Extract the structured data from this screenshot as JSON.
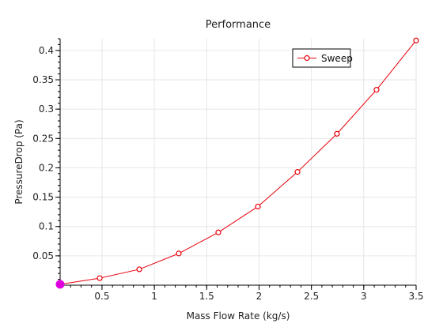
{
  "chart_data": {
    "type": "line",
    "title": "Performance",
    "xlabel": "Mass Flow Rate (kg/s)",
    "ylabel": "PressureDrop (Pa)",
    "xlim": [
      0.1,
      3.5
    ],
    "ylim": [
      0,
      0.42
    ],
    "x_ticks": [
      0.5,
      1,
      1.5,
      2,
      2.5,
      3,
      3.5
    ],
    "x_tick_labels": [
      "0.5",
      "1",
      "1.5",
      "2",
      "2.5",
      "3",
      "3.5"
    ],
    "y_ticks": [
      0.05,
      0.1,
      0.15,
      0.2,
      0.25,
      0.3,
      0.35,
      0.4
    ],
    "y_tick_labels": [
      "0.05",
      "0.1",
      "0.15",
      "0.2",
      "0.25",
      "0.3",
      "0.35",
      "0.4"
    ],
    "grid": true,
    "legend_position": "top-right",
    "series": [
      {
        "name": "Sweep",
        "color": "#e8000b",
        "marker": "open-circle",
        "x": [
          0.1,
          0.478,
          0.856,
          1.233,
          1.611,
          1.989,
          2.367,
          2.744,
          3.122,
          3.5
        ],
        "y": [
          0.0015,
          0.012,
          0.027,
          0.054,
          0.09,
          0.134,
          0.193,
          0.258,
          0.333,
          0.417
        ]
      }
    ],
    "highlight_point": {
      "x": 0.1,
      "y": 0.0015,
      "color": "#e000e0"
    }
  }
}
